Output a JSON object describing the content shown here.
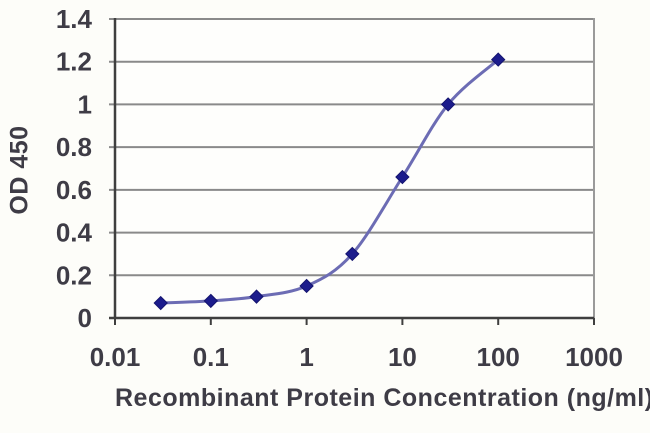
{
  "chart_data": {
    "type": "line",
    "title": "",
    "xlabel": "Recombinant Protein Concentration (ng/ml)",
    "ylabel": "OD 450",
    "x_scale": "log",
    "xlim": [
      0.01,
      1000
    ],
    "ylim": [
      0,
      1.4
    ],
    "x_ticks": [
      0.01,
      0.1,
      1,
      10,
      100,
      1000
    ],
    "x_tick_labels": [
      "0.01",
      "0.1",
      "1",
      "10",
      "100",
      "1000"
    ],
    "y_ticks": [
      0,
      0.2,
      0.4,
      0.6,
      0.8,
      1,
      1.2,
      1.4
    ],
    "y_tick_labels": [
      "0",
      "0.2",
      "0.4",
      "0.6",
      "0.8",
      "1",
      "1.2",
      "1.4"
    ],
    "grid": "horizontal",
    "legend": "none",
    "series": [
      {
        "name": "OD 450",
        "marker": "diamond",
        "line_style": "smooth",
        "x": [
          0.03,
          0.1,
          0.3,
          1,
          3,
          10,
          30,
          100
        ],
        "y": [
          0.07,
          0.08,
          0.1,
          0.15,
          0.3,
          0.66,
          1.0,
          1.21
        ]
      }
    ],
    "colors": {
      "line": "#6c6cb4",
      "marker": "#1c1c8c",
      "marker_edge": "#14146e",
      "gridline": "#8a8a8a",
      "axis": "#3f3f3f",
      "frame": "#9a9a9a",
      "text": "#3e3c46",
      "background": "#fdfdf9",
      "plot_background": "#fefefc"
    }
  }
}
